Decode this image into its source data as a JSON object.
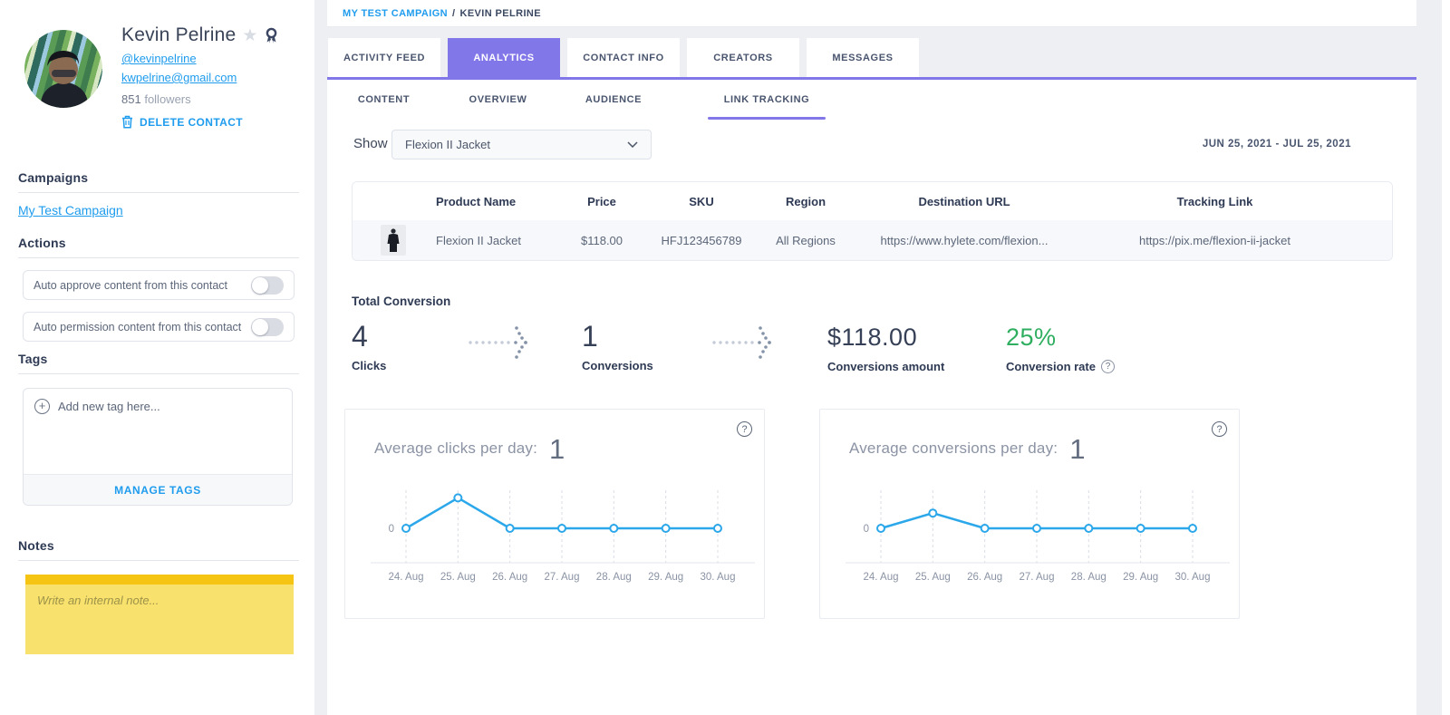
{
  "colors": {
    "accent_purple": "#8277E8",
    "accent_blue": "#1F9CED",
    "chart_blue": "#2BA7EA",
    "success_green": "#2FAE60",
    "note_yellow": "#F8E16D",
    "note_yellow_dark": "#F6C514"
  },
  "sidebar": {
    "profile": {
      "name": "Kevin Pelrine",
      "handle": "@kevinpelrine",
      "email": "kwpelrine@gmail.com",
      "followers_count": "851",
      "followers_label": "followers",
      "delete_button": "DELETE CONTACT"
    },
    "campaigns": {
      "title": "Campaigns",
      "links": [
        {
          "label": "My Test Campaign"
        }
      ]
    },
    "actions": {
      "title": "Actions",
      "toggles": [
        {
          "label": "Auto approve content from this contact",
          "state": "off"
        },
        {
          "label": "Auto permission content from this contact",
          "state": "off"
        }
      ]
    },
    "tags": {
      "title": "Tags",
      "add_placeholder": "Add new tag here...",
      "manage_button": "MANAGE TAGS"
    },
    "notes": {
      "title": "Notes",
      "placeholder": "Write an internal note..."
    }
  },
  "breadcrumb": {
    "campaign": "MY TEST CAMPAIGN",
    "separator": "/",
    "current": "KEVIN PELRINE"
  },
  "tabs": {
    "items": [
      {
        "label": "ACTIVITY FEED"
      },
      {
        "label": "ANALYTICS",
        "active": true
      },
      {
        "label": "CONTACT INFO"
      },
      {
        "label": "CREATORS"
      },
      {
        "label": "MESSAGES"
      }
    ]
  },
  "subtabs": {
    "items": [
      {
        "label": "CONTENT"
      },
      {
        "label": "OVERVIEW"
      },
      {
        "label": "AUDIENCE"
      },
      {
        "label": "LINK TRACKING",
        "active": true
      }
    ]
  },
  "filters": {
    "show_label": "Show",
    "selected_product": "Flexion II Jacket",
    "date_range": "JUN 25, 2021 - JUL 25, 2021"
  },
  "link_table": {
    "headers": {
      "product_name": "Product Name",
      "price": "Price",
      "sku": "SKU",
      "region": "Region",
      "destination_url": "Destination URL",
      "tracking_link": "Tracking Link"
    },
    "row": {
      "product_name": "Flexion II Jacket",
      "price": "$118.00",
      "sku": "HFJ123456789",
      "region": "All Regions",
      "destination_url": "https://www.hylete.com/flexion...",
      "tracking_link": "https://pix.me/flexion-ii-jacket"
    }
  },
  "totals": {
    "title": "Total Conversion",
    "stats": [
      {
        "value": "4",
        "label": "Clicks"
      },
      {
        "value": "1",
        "label": "Conversions"
      },
      {
        "value": "$118.00",
        "label": "Conversions amount"
      },
      {
        "value": "25%",
        "label": "Conversion rate",
        "has_help": true,
        "color": "#2FAE60"
      }
    ]
  },
  "chart_data": [
    {
      "type": "line",
      "title": "Average clicks per day:",
      "average_value": "1",
      "categories": [
        "24. Aug",
        "25. Aug",
        "26. Aug",
        "27. Aug",
        "28. Aug",
        "29. Aug",
        "30. Aug"
      ],
      "values": [
        0,
        4,
        0,
        0,
        0,
        0,
        0
      ],
      "ylabel_ticks": [
        "0"
      ],
      "ylim": [
        0,
        5
      ],
      "line_color": "#2BA7EA",
      "grid": "vertical-dashed",
      "legend": "none"
    },
    {
      "type": "line",
      "title": "Average conversions per day:",
      "average_value": "1",
      "categories": [
        "24. Aug",
        "25. Aug",
        "26. Aug",
        "27. Aug",
        "28. Aug",
        "29. Aug",
        "30. Aug"
      ],
      "values": [
        0,
        1,
        0,
        0,
        0,
        0,
        0
      ],
      "ylabel_ticks": [
        "0"
      ],
      "ylim": [
        0,
        2.5
      ],
      "line_color": "#2BA7EA",
      "grid": "vertical-dashed",
      "legend": "none"
    }
  ]
}
